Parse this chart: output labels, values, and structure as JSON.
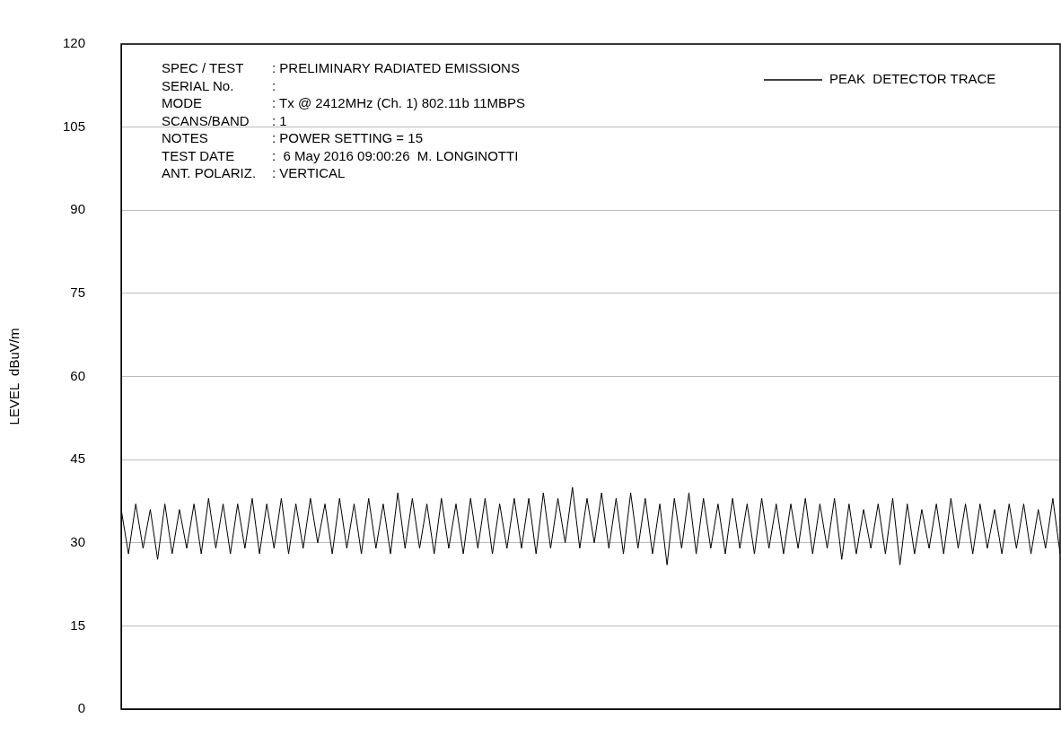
{
  "chart_data": {
    "type": "line",
    "ylabel": "LEVEL  dBuV/m",
    "categories": [
      null,
      null,
      null,
      null,
      null,
      null,
      null,
      null,
      null,
      null,
      null,
      null,
      null,
      null,
      null,
      null,
      null,
      null,
      null,
      null,
      null,
      null,
      null,
      null,
      null,
      null,
      null,
      null,
      null,
      null,
      null,
      null,
      null,
      null,
      null,
      null,
      null,
      null,
      null,
      null,
      null,
      null,
      null,
      null,
      null,
      null,
      null,
      null,
      null,
      null,
      null,
      null,
      null,
      null,
      null,
      null,
      null,
      null,
      null,
      null,
      null,
      null,
      null,
      null,
      null,
      null,
      null,
      null,
      null,
      null,
      null,
      null,
      null,
      null,
      null,
      null,
      null,
      null,
      null,
      null,
      null,
      null,
      null,
      null,
      null,
      null,
      null,
      null,
      null,
      null,
      null,
      null,
      null,
      null,
      null,
      null,
      null,
      null,
      null,
      null,
      null,
      null,
      null,
      null,
      null,
      null,
      null,
      null,
      null,
      null,
      null,
      null,
      null,
      null,
      null,
      null,
      null,
      null,
      null,
      null,
      null,
      null,
      null,
      null,
      null,
      null,
      null,
      null,
      null,
      null
    ],
    "series": [
      {
        "name": "PEAK  DETECTOR TRACE",
        "color": "#000000",
        "values": [
          36,
          28,
          37,
          29,
          36,
          27,
          37,
          28,
          36,
          29,
          37,
          28,
          38,
          29,
          37,
          28,
          37,
          29,
          38,
          28,
          37,
          29,
          38,
          28,
          37,
          29,
          38,
          30,
          37,
          28,
          38,
          29,
          37,
          28,
          38,
          29,
          37,
          28,
          39,
          29,
          38,
          29,
          37,
          28,
          38,
          29,
          37,
          28,
          38,
          29,
          38,
          28,
          37,
          29,
          38,
          29,
          38,
          28,
          39,
          29,
          38,
          30,
          40,
          29,
          38,
          30,
          39,
          29,
          38,
          28,
          39,
          29,
          38,
          28,
          37,
          26,
          38,
          29,
          39,
          28,
          38,
          29,
          37,
          28,
          38,
          29,
          37,
          28,
          38,
          29,
          37,
          28,
          37,
          29,
          38,
          28,
          37,
          29,
          38,
          27,
          37,
          28,
          36,
          29,
          37,
          28,
          38,
          26,
          37,
          28,
          36,
          29,
          37,
          28,
          38,
          29,
          37,
          28,
          37,
          29,
          36,
          28,
          37,
          29,
          37,
          28,
          36,
          29,
          38,
          28
        ]
      }
    ],
    "ylim": [
      0,
      120
    ],
    "yticks": [
      0,
      15,
      30,
      45,
      60,
      75,
      90,
      105,
      120
    ],
    "grid": "y",
    "legend": "top right",
    "tick_labels": "y",
    "annotations": [
      "SPEC / TEST   : PRELIMINARY RADIATED EMISSIONS",
      "SERIAL No.    :",
      "MODE          : Tx @ 2412MHz (Ch. 1) 802.11b 11MBPS",
      "SCANS/BAND    : 1",
      "NOTES         : POWER SETTING = 15",
      "TEST DATE     :  6 May 2016 09:00:26  M. LONGINOTTI",
      "ANT. POLARIZ. : VERTICAL"
    ]
  }
}
